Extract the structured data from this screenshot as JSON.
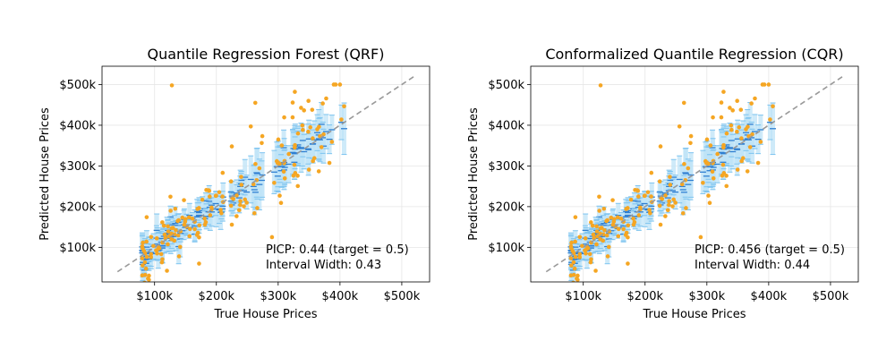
{
  "chart_data": [
    {
      "type": "scatter",
      "title": "Quantile Regression Forest (QRF)",
      "xlabel": "True House Prices",
      "ylabel": "Predicted House Prices",
      "xlim": [
        15000,
        545000
      ],
      "ylim": [
        15000,
        545000
      ],
      "x_ticks": [
        100000,
        200000,
        300000,
        400000,
        500000
      ],
      "x_tick_labels": [
        "$100k",
        "$200k",
        "$300k",
        "$400k",
        "$500k"
      ],
      "y_ticks": [
        100000,
        200000,
        300000,
        400000,
        500000
      ],
      "y_tick_labels": [
        "$100k",
        "$200k",
        "$300k",
        "$400k",
        "$500k"
      ],
      "grid": true,
      "annotation": [
        "PICP: 0.44 (target = 0.5)",
        "Interval Width: 0.43"
      ],
      "reference_line": {
        "from": [
          40000,
          40000
        ],
        "to": [
          520000,
          520000
        ]
      },
      "colors": {
        "points": "#f5a623",
        "interval": "#bde3f7",
        "median": "#2f7fd1",
        "diagonal": "#999999"
      },
      "outliers": [
        [
          128000,
          498000
        ],
        [
          225000,
          348000
        ],
        [
          263000,
          455000
        ],
        [
          172000,
          60000
        ],
        [
          290000,
          125000
        ],
        [
          352000,
          395000
        ],
        [
          355000,
          438000
        ],
        [
          390000,
          500000
        ],
        [
          400000,
          500000
        ],
        [
          393000,
          500000
        ]
      ]
    },
    {
      "type": "scatter",
      "title": "Conformalized Quantile Regression (CQR)",
      "xlabel": "True House Prices",
      "ylabel": "Predicted House Prices",
      "xlim": [
        15000,
        545000
      ],
      "ylim": [
        15000,
        545000
      ],
      "x_ticks": [
        100000,
        200000,
        300000,
        400000,
        500000
      ],
      "x_tick_labels": [
        "$100k",
        "$200k",
        "$300k",
        "$400k",
        "$500k"
      ],
      "y_ticks": [
        100000,
        200000,
        300000,
        400000,
        500000
      ],
      "y_tick_labels": [
        "$100k",
        "$200k",
        "$300k",
        "$400k",
        "$500k"
      ],
      "grid": true,
      "annotation": [
        "PICP: 0.456 (target = 0.5)",
        "Interval Width: 0.44"
      ],
      "reference_line": {
        "from": [
          40000,
          40000
        ],
        "to": [
          520000,
          520000
        ]
      },
      "colors": {
        "points": "#f5a623",
        "interval": "#bde3f7",
        "median": "#2f7fd1",
        "diagonal": "#999999"
      },
      "outliers": [
        [
          128000,
          498000
        ],
        [
          225000,
          348000
        ],
        [
          263000,
          455000
        ],
        [
          172000,
          60000
        ],
        [
          290000,
          125000
        ],
        [
          352000,
          395000
        ],
        [
          355000,
          438000
        ],
        [
          390000,
          500000
        ],
        [
          400000,
          500000
        ],
        [
          393000,
          500000
        ]
      ]
    }
  ]
}
